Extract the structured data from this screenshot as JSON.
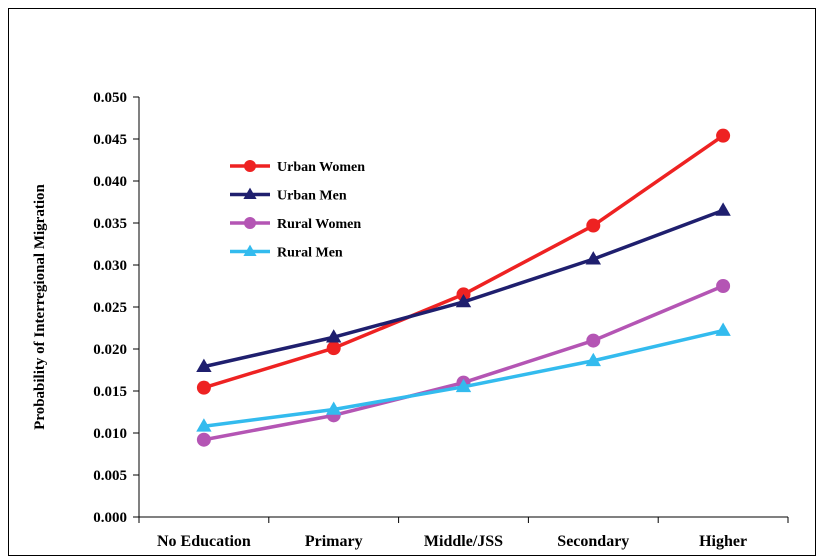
{
  "chart_data": {
    "type": "line",
    "title": "",
    "xlabel": "",
    "ylabel": "Probability of Interregional Migration",
    "categories": [
      "No Education",
      "Primary",
      "Middle/JSS",
      "Secondary",
      "Higher"
    ],
    "ylim": [
      0,
      0.05
    ],
    "yticks": [
      "0.000",
      "0.005",
      "0.010",
      "0.015",
      "0.020",
      "0.025",
      "0.030",
      "0.035",
      "0.040",
      "0.045",
      "0.050"
    ],
    "grid": false,
    "legend_position": "top-left",
    "series": [
      {
        "name": "Urban Women",
        "color": "#ee2222",
        "marker": "circle",
        "values": [
          0.0154,
          0.0201,
          0.0265,
          0.0347,
          0.0454
        ]
      },
      {
        "name": "Urban Men",
        "color": "#1f1f6e",
        "marker": "triangle",
        "values": [
          0.0179,
          0.0214,
          0.0256,
          0.0307,
          0.0365
        ]
      },
      {
        "name": "Rural Women",
        "color": "#b455b4",
        "marker": "circle",
        "values": [
          0.0092,
          0.0121,
          0.016,
          0.021,
          0.0275
        ]
      },
      {
        "name": "Rural Men",
        "color": "#33bbee",
        "marker": "triangle",
        "values": [
          0.0108,
          0.0128,
          0.0155,
          0.0186,
          0.0222
        ]
      }
    ]
  }
}
